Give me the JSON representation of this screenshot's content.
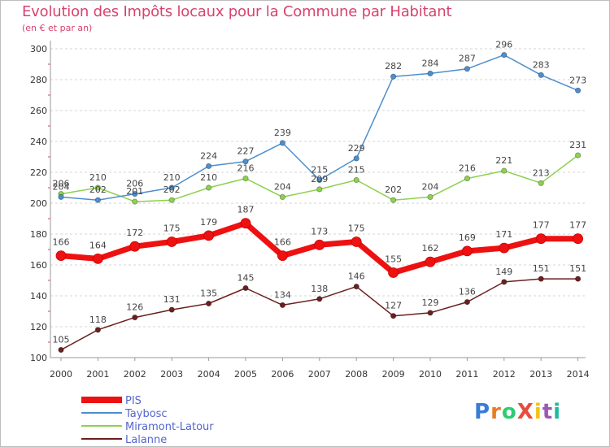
{
  "title": "Evolution des Impôts locaux pour la Commune par Habitant",
  "subtitle": "(en € et par an)",
  "logo_text": "ProXiti",
  "chart_data": {
    "type": "line",
    "title": "Evolution des Impôts locaux pour la Commune par Habitant",
    "subtitle": "(en € et par an)",
    "xlabel": "",
    "ylabel": "",
    "x": [
      "2000",
      "2001",
      "2002",
      "2003",
      "2004",
      "2005",
      "2006",
      "2007",
      "2008",
      "2009",
      "2010",
      "2011",
      "2012",
      "2013",
      "2014"
    ],
    "ylim": [
      100,
      300
    ],
    "yticks": [
      100,
      120,
      140,
      160,
      180,
      200,
      220,
      240,
      260,
      280,
      300
    ],
    "grid": "horizontal dashed",
    "legend_position": "bottom-left",
    "series": [
      {
        "name": "PIS",
        "color": "#ee1111",
        "values": [
          166,
          164,
          172,
          175,
          179,
          187,
          166,
          173,
          175,
          155,
          162,
          169,
          171,
          177,
          177
        ]
      },
      {
        "name": "Taybosc",
        "color": "#4d8fce",
        "values": [
          204,
          202,
          206,
          210,
          224,
          227,
          239,
          215,
          229,
          282,
          284,
          287,
          296,
          283,
          273
        ]
      },
      {
        "name": "Miramont-Latour",
        "color": "#8dd14f",
        "values": [
          206,
          210,
          201,
          202,
          210,
          216,
          204,
          209,
          215,
          202,
          204,
          216,
          221,
          213,
          231
        ]
      },
      {
        "name": "Lalanne",
        "color": "#6b1f1f",
        "values": [
          105,
          118,
          126,
          131,
          135,
          145,
          134,
          138,
          146,
          127,
          129,
          136,
          149,
          151,
          151
        ]
      }
    ],
    "labels": [
      [
        "166",
        "164",
        "172",
        "175",
        "179",
        "187",
        "166",
        "173",
        "175",
        "155",
        "162",
        "169",
        "171",
        "177",
        "177"
      ],
      [
        "204",
        "202",
        "206",
        "210",
        "224",
        "227",
        "239",
        "215",
        "229",
        "282",
        "284",
        "287",
        "296",
        "283",
        "273"
      ],
      [
        "206",
        "210",
        "201",
        "202",
        "210",
        "216",
        "204",
        "209",
        "215",
        "202",
        "204",
        "216",
        "221",
        "213",
        "231"
      ],
      [
        "105",
        "118",
        "126",
        "131",
        "135",
        "145",
        "134",
        "138",
        "146",
        "127",
        "129",
        "136",
        "149",
        "151",
        "151"
      ]
    ]
  }
}
